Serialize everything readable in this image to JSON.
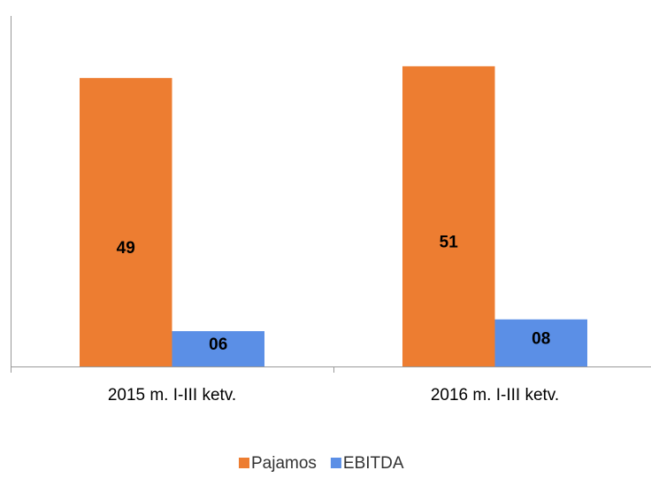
{
  "chart_data": {
    "type": "bar",
    "categories": [
      "2015 m. I-III ketv.",
      "2016 m. I-III ketv."
    ],
    "series": [
      {
        "name": "Pajamos",
        "color": "#ed7d31",
        "values": [
          49,
          51
        ]
      },
      {
        "name": "EBITDA",
        "color": "#5b8fe6",
        "values": [
          6,
          8
        ],
        "value_labels": [
          "06",
          "08"
        ]
      }
    ],
    "ylim": [
      0,
      60
    ]
  }
}
